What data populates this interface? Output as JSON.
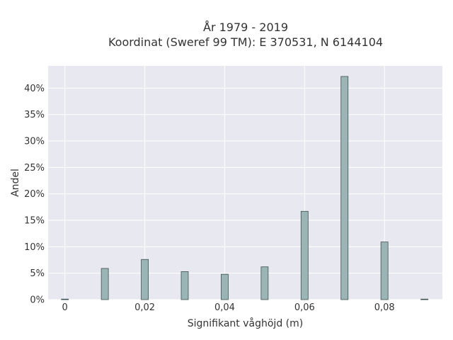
{
  "chart_data": {
    "type": "bar",
    "title_lines": [
      "År 1979 - 2019",
      "Koordinat (Sweref 99 TM): E 370531, N 6144104"
    ],
    "xlabel": "Signifikant våghöjd (m)",
    "ylabel": "Andel",
    "x_ticks": [
      {
        "value": 0,
        "label": "0"
      },
      {
        "value": 0.02,
        "label": "0,02"
      },
      {
        "value": 0.04,
        "label": "0,04"
      },
      {
        "value": 0.06,
        "label": "0,06"
      },
      {
        "value": 0.08,
        "label": "0,08"
      }
    ],
    "y_ticks": [
      {
        "value": 0,
        "label": "0%"
      },
      {
        "value": 5,
        "label": "5%"
      },
      {
        "value": 10,
        "label": "10%"
      },
      {
        "value": 15,
        "label": "15%"
      },
      {
        "value": 20,
        "label": "20%"
      },
      {
        "value": 25,
        "label": "25%"
      },
      {
        "value": 30,
        "label": "30%"
      },
      {
        "value": 35,
        "label": "35%"
      },
      {
        "value": 40,
        "label": "40%"
      }
    ],
    "x": [
      0,
      0.01,
      0.02,
      0.03,
      0.04,
      0.05,
      0.06,
      0.07,
      0.08,
      0.09
    ],
    "values": [
      0.1,
      5.9,
      7.6,
      5.3,
      4.8,
      6.2,
      16.7,
      42.2,
      10.9,
      0.1
    ],
    "xlim": [
      -0.0042,
      0.0945
    ],
    "ylim": [
      0,
      44.2
    ],
    "grid": true,
    "colors": {
      "plot_background": "#e8e8f0",
      "grid": "#ffffff",
      "bar_fill": "#9bb4b5",
      "bar_edge": "#3f5252",
      "text": "#333333"
    }
  }
}
